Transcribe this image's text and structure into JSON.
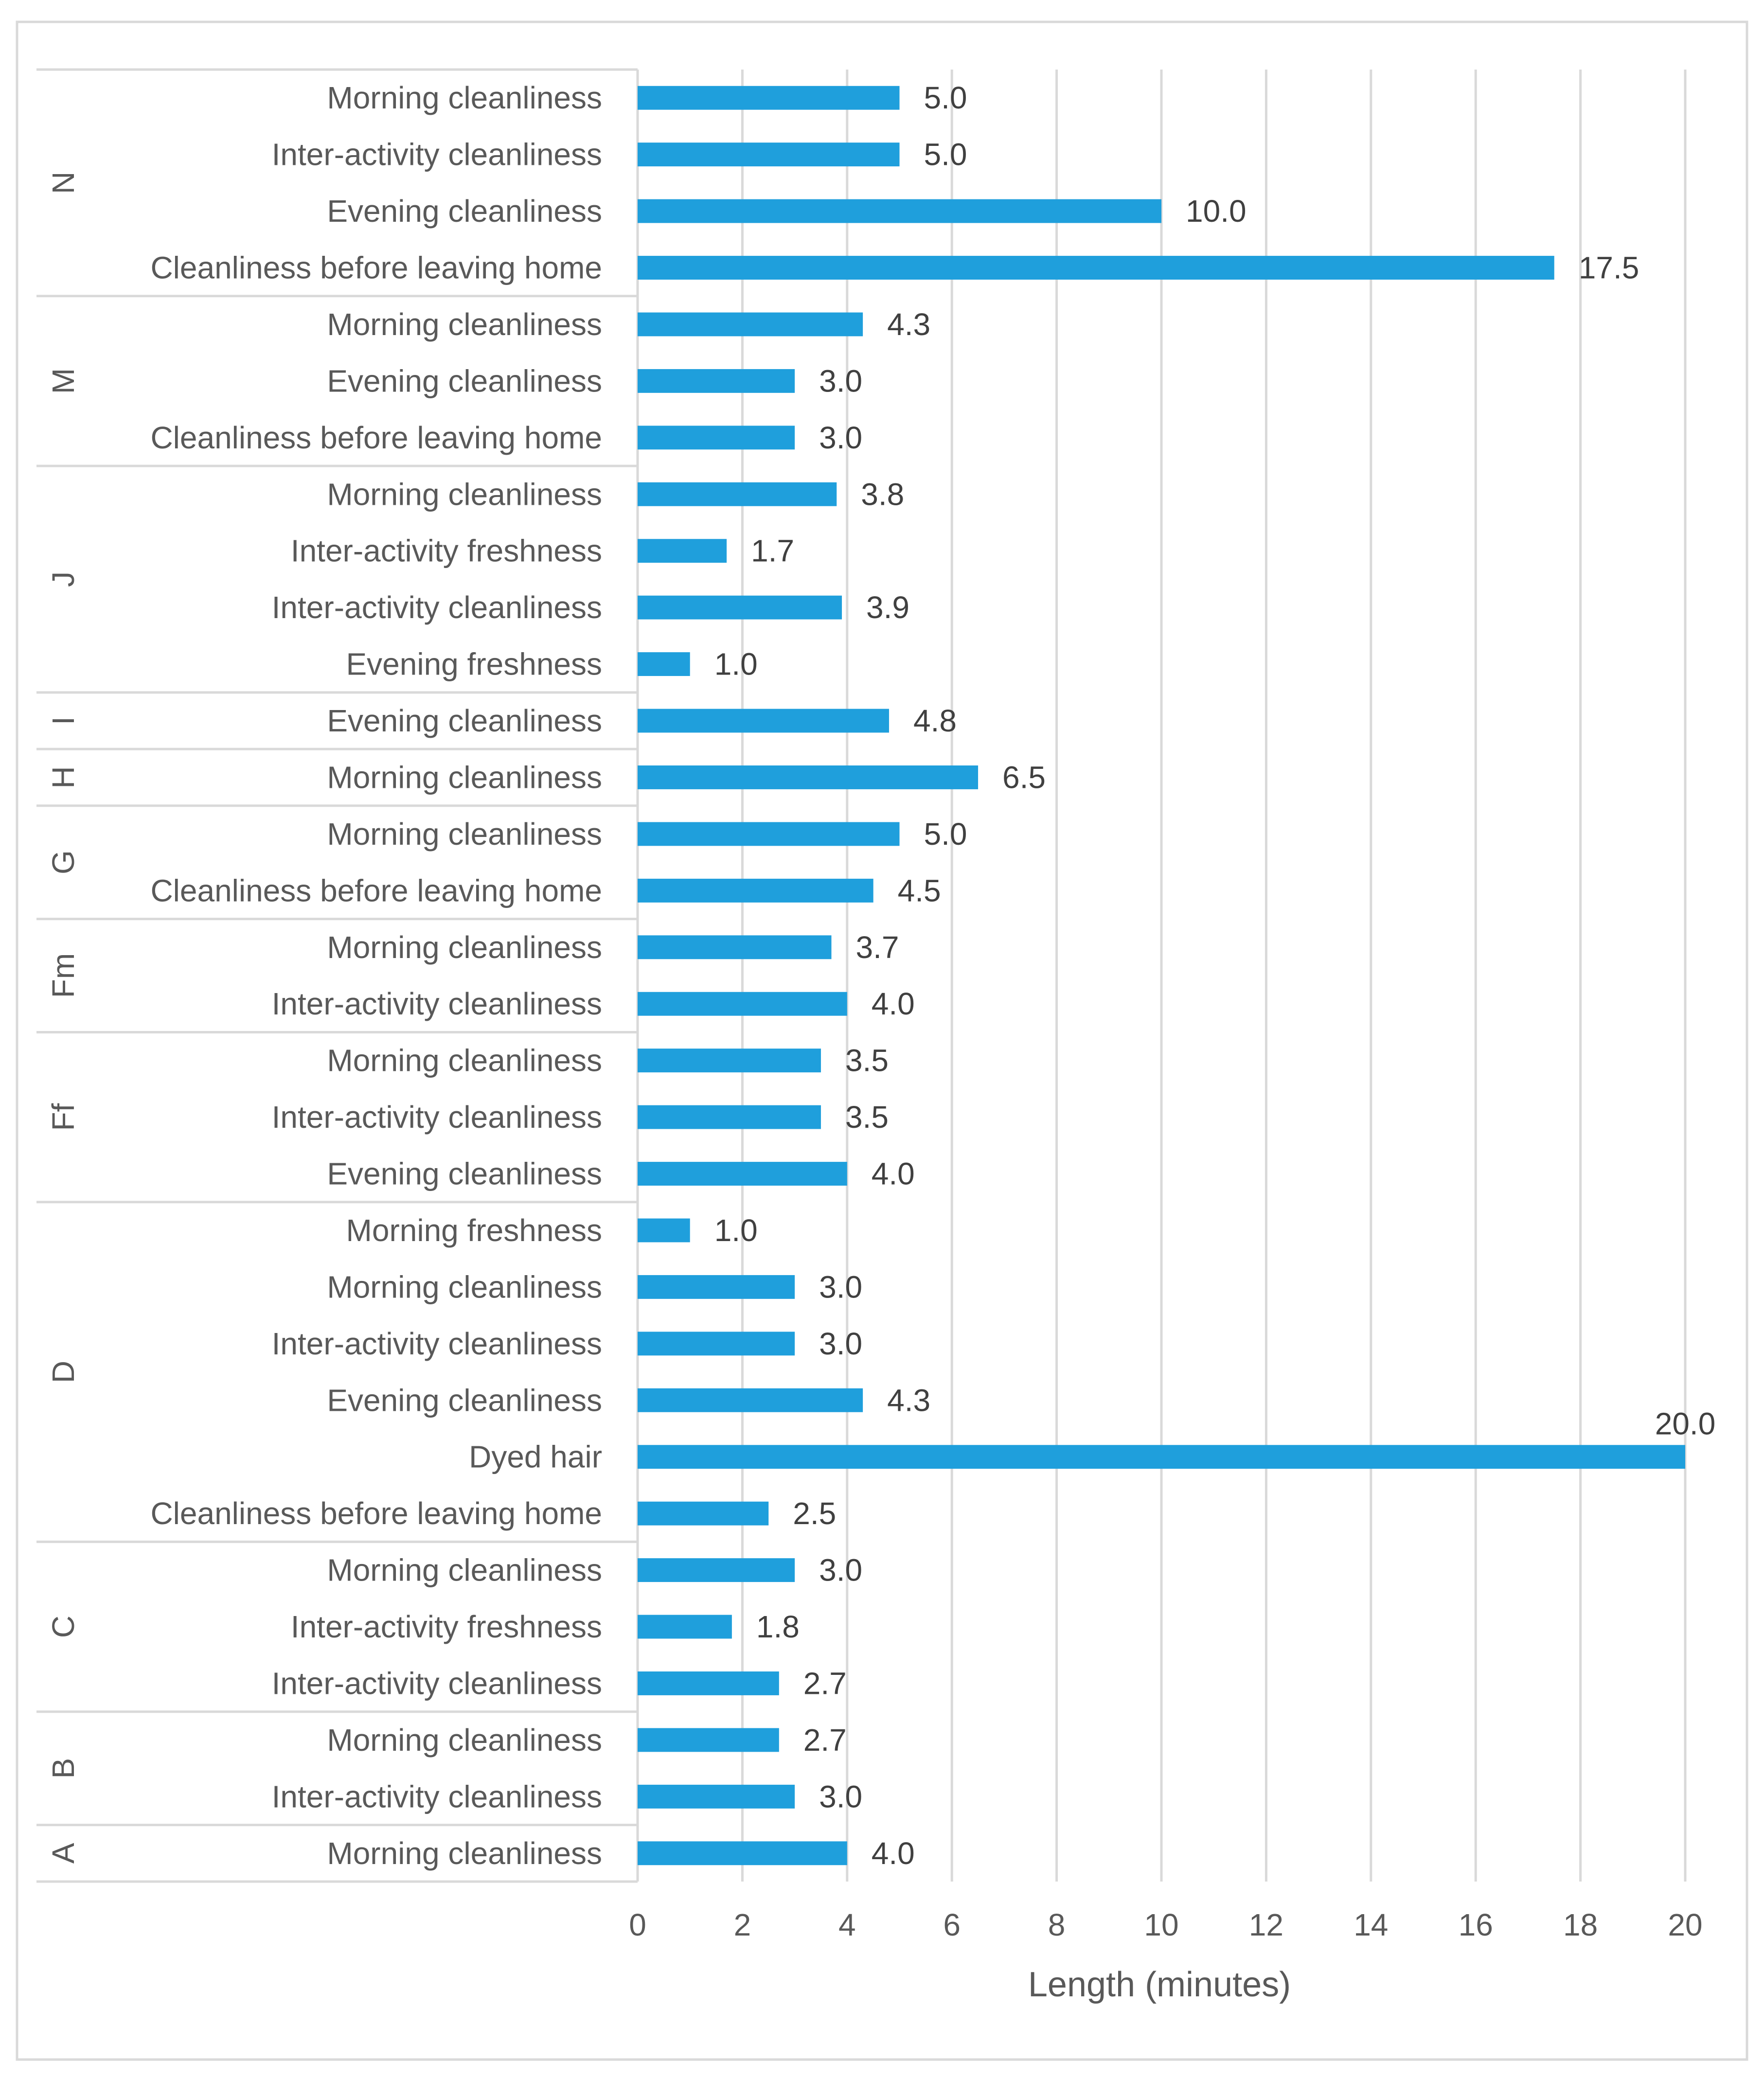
{
  "chart_data": {
    "type": "bar",
    "orientation": "horizontal",
    "xlabel": "Length (minutes)",
    "xlim": [
      0,
      20
    ],
    "xticks": [
      "0",
      "2",
      "4",
      "6",
      "8",
      "10",
      "12",
      "14",
      "16",
      "18",
      "20"
    ],
    "grid": true,
    "bar_color": "#1f9fdc",
    "groups": [
      {
        "name": "N",
        "items": [
          {
            "label": "Morning cleanliness",
            "value": 5.0,
            "text": "5.0"
          },
          {
            "label": "Inter-activity cleanliness",
            "value": 5.0,
            "text": "5.0"
          },
          {
            "label": "Evening cleanliness",
            "value": 10.0,
            "text": "10.0"
          },
          {
            "label": "Cleanliness before leaving home",
            "value": 17.5,
            "text": "17.5"
          }
        ]
      },
      {
        "name": "M",
        "items": [
          {
            "label": "Morning cleanliness",
            "value": 4.3,
            "text": "4.3"
          },
          {
            "label": "Evening cleanliness",
            "value": 3.0,
            "text": "3.0"
          },
          {
            "label": "Cleanliness before leaving home",
            "value": 3.0,
            "text": "3.0"
          }
        ]
      },
      {
        "name": "J",
        "items": [
          {
            "label": "Morning cleanliness",
            "value": 3.8,
            "text": "3.8"
          },
          {
            "label": "Inter-activity freshness",
            "value": 1.7,
            "text": "1.7"
          },
          {
            "label": "Inter-activity cleanliness",
            "value": 3.9,
            "text": "3.9"
          },
          {
            "label": "Evening freshness",
            "value": 1.0,
            "text": "1.0"
          }
        ]
      },
      {
        "name": "I",
        "items": [
          {
            "label": "Evening cleanliness",
            "value": 4.8,
            "text": "4.8"
          }
        ]
      },
      {
        "name": "H",
        "items": [
          {
            "label": "Morning cleanliness",
            "value": 6.5,
            "text": "6.5"
          }
        ]
      },
      {
        "name": "G",
        "items": [
          {
            "label": "Morning cleanliness",
            "value": 5.0,
            "text": "5.0"
          },
          {
            "label": "Cleanliness before leaving home",
            "value": 4.5,
            "text": "4.5"
          }
        ]
      },
      {
        "name": "Fm",
        "items": [
          {
            "label": "Morning cleanliness",
            "value": 3.7,
            "text": "3.7"
          },
          {
            "label": "Inter-activity cleanliness",
            "value": 4.0,
            "text": "4.0"
          }
        ]
      },
      {
        "name": "Ff",
        "items": [
          {
            "label": "Morning cleanliness",
            "value": 3.5,
            "text": "3.5"
          },
          {
            "label": "Inter-activity cleanliness",
            "value": 3.5,
            "text": "3.5"
          },
          {
            "label": "Evening cleanliness",
            "value": 4.0,
            "text": "4.0"
          }
        ]
      },
      {
        "name": "D",
        "items": [
          {
            "label": "Morning freshness",
            "value": 1.0,
            "text": "1.0"
          },
          {
            "label": "Morning cleanliness",
            "value": 3.0,
            "text": "3.0"
          },
          {
            "label": "Inter-activity cleanliness",
            "value": 3.0,
            "text": "3.0"
          },
          {
            "label": "Evening cleanliness",
            "value": 4.3,
            "text": "4.3"
          },
          {
            "label": "Dyed hair",
            "value": 20.0,
            "text": "20.0"
          },
          {
            "label": "Cleanliness before leaving home",
            "value": 2.5,
            "text": "2.5"
          }
        ]
      },
      {
        "name": "C",
        "items": [
          {
            "label": "Morning cleanliness",
            "value": 3.0,
            "text": "3.0"
          },
          {
            "label": "Inter-activity freshness",
            "value": 1.8,
            "text": "1.8"
          },
          {
            "label": "Inter-activity cleanliness",
            "value": 2.7,
            "text": "2.7"
          }
        ]
      },
      {
        "name": "B",
        "items": [
          {
            "label": "Morning cleanliness",
            "value": 2.7,
            "text": "2.7"
          },
          {
            "label": "Inter-activity cleanliness",
            "value": 3.0,
            "text": "3.0"
          }
        ]
      },
      {
        "name": "A",
        "items": [
          {
            "label": "Morning cleanliness",
            "value": 4.0,
            "text": "4.0"
          }
        ]
      }
    ]
  }
}
